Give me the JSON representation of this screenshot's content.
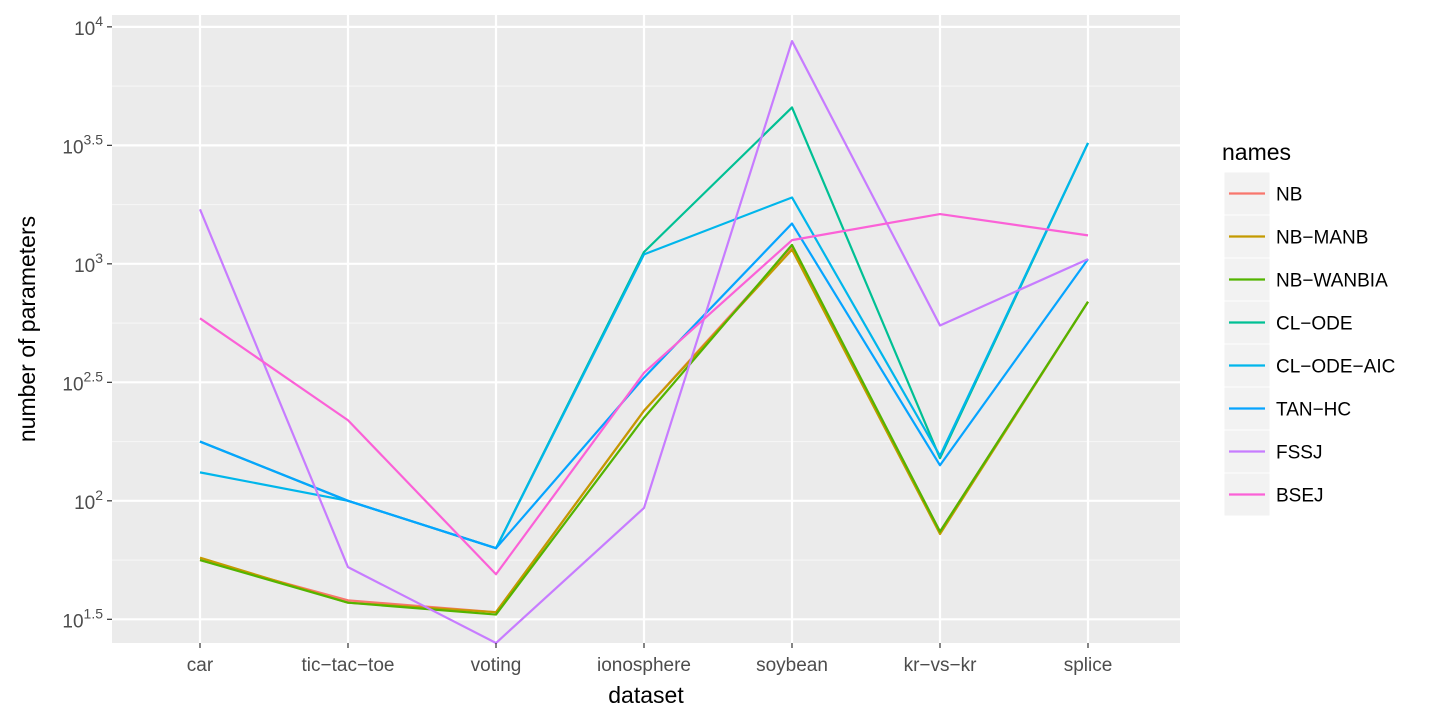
{
  "chart_data": {
    "type": "line",
    "title": "",
    "xlabel": "dataset",
    "ylabel": "number of parameters",
    "y_scale": "log10",
    "ylim": [
      1.4,
      4.05
    ],
    "categories": [
      "car",
      "tic-tac-toe",
      "voting",
      "ionosphere",
      "soybean",
      "kr-vs-kr",
      "splice"
    ],
    "y_ticks": [
      {
        "base": "10",
        "exp": "1.5",
        "value": 1.5
      },
      {
        "base": "10",
        "exp": "2",
        "value": 2
      },
      {
        "base": "10",
        "exp": "2.5",
        "value": 2.5
      },
      {
        "base": "10",
        "exp": "3",
        "value": 3
      },
      {
        "base": "10",
        "exp": "3.5",
        "value": 3.5
      },
      {
        "base": "10",
        "exp": "4",
        "value": 4
      }
    ],
    "grid": true,
    "legend": {
      "title": "names",
      "position": "right"
    },
    "series": [
      {
        "name": "NB",
        "color": "#F8766D",
        "log10_values": [
          1.75,
          1.58,
          1.53,
          2.38,
          3.07,
          1.87,
          2.84
        ]
      },
      {
        "name": "NB-MANB",
        "color": "#C49A00",
        "log10_values": [
          1.76,
          1.57,
          1.53,
          2.38,
          3.06,
          1.86,
          2.84
        ]
      },
      {
        "name": "NB-WANBIA",
        "color": "#53B400",
        "log10_values": [
          1.75,
          1.57,
          1.52,
          2.35,
          3.08,
          1.87,
          2.84
        ]
      },
      {
        "name": "CL-ODE",
        "color": "#00C094",
        "log10_values": [
          2.25,
          2.0,
          1.8,
          3.05,
          3.66,
          2.18,
          3.51
        ]
      },
      {
        "name": "CL-ODE-AIC",
        "color": "#00B6EB",
        "log10_values": [
          2.12,
          2.0,
          1.8,
          3.04,
          3.28,
          2.19,
          3.51
        ]
      },
      {
        "name": "TAN-HC",
        "color": "#06A4FF",
        "log10_values": [
          2.25,
          2.0,
          1.8,
          2.52,
          3.17,
          2.15,
          3.02
        ]
      },
      {
        "name": "FSSJ",
        "color": "#C77CFF",
        "log10_values": [
          3.23,
          1.72,
          1.4,
          1.97,
          3.94,
          2.74,
          3.02
        ]
      },
      {
        "name": "BSEJ",
        "color": "#FB61D7",
        "log10_values": [
          2.77,
          2.34,
          1.69,
          2.54,
          3.1,
          3.21,
          3.12
        ]
      }
    ]
  }
}
